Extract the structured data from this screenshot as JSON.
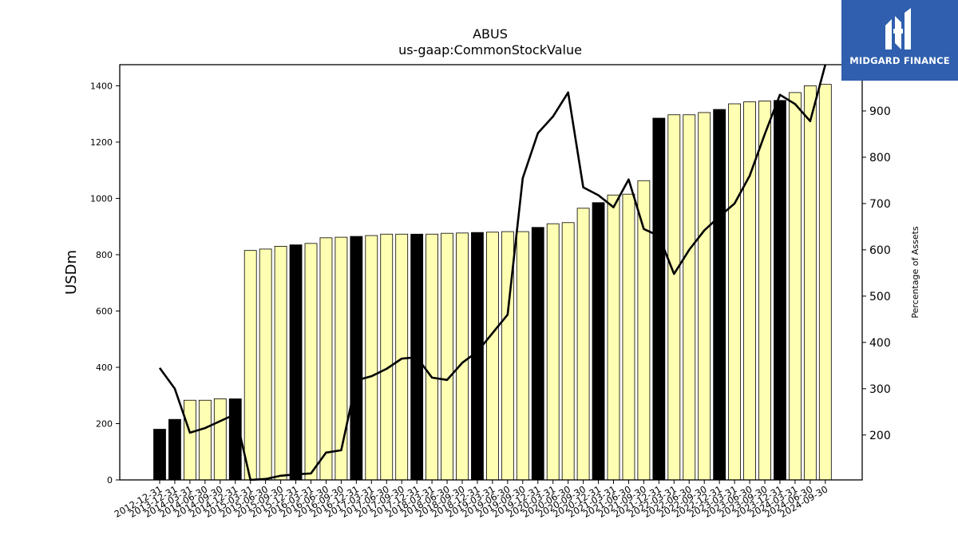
{
  "brand": {
    "name": "MIDGARD FINANCE",
    "icon": "midgard-m-logo-icon",
    "background": "#2f5fae"
  },
  "chart_data": {
    "type": "bar",
    "title": "ABUS",
    "subtitle": "us-gaap:CommonStockValue",
    "ylabel": "USDm",
    "y2label": "Percentage of Assets",
    "ylim": [
      0,
      1475
    ],
    "y2lim": [
      103,
      1000
    ],
    "yticks": [
      0,
      200,
      400,
      600,
      800,
      1000,
      1200,
      1400
    ],
    "y2ticks": [
      200,
      300,
      400,
      500,
      600,
      700,
      800,
      900
    ],
    "colors": {
      "annual": "#000000",
      "quarterly": "#ffffb3",
      "line": "#000000"
    },
    "categories": [
      "2012-12-31",
      "2013-12-31",
      "2014-03-31",
      "2014-06-30",
      "2014-09-30",
      "2014-12-31",
      "2015-03-31",
      "2015-06-30",
      "2015-09-30",
      "2015-12-31",
      "2016-03-31",
      "2016-06-30",
      "2016-09-30",
      "2016-12-31",
      "2017-03-31",
      "2017-06-30",
      "2017-09-30",
      "2017-12-31",
      "2018-03-31",
      "2018-06-30",
      "2018-09-30",
      "2018-12-31",
      "2019-03-31",
      "2019-06-30",
      "2019-09-30",
      "2019-12-31",
      "2020-03-31",
      "2020-06-30",
      "2020-09-30",
      "2020-12-31",
      "2021-03-31",
      "2021-06-30",
      "2021-09-30",
      "2021-12-31",
      "2022-03-31",
      "2022-06-30",
      "2022-09-30",
      "2022-12-31",
      "2023-03-31",
      "2023-06-30",
      "2023-09-30",
      "2023-12-31",
      "2024-03-31",
      "2024-06-30",
      "2024-09-30"
    ],
    "series": [
      {
        "type": "bar",
        "axis": "left",
        "values": [
          180,
          215,
          283,
          283,
          288,
          288,
          815,
          820,
          830,
          835,
          840,
          860,
          862,
          865,
          868,
          873,
          873,
          873,
          873,
          876,
          877,
          879,
          880,
          882,
          882,
          897,
          910,
          914,
          965,
          985,
          1012,
          1015,
          1063,
          1285,
          1297,
          1297,
          1305,
          1316,
          1336,
          1343,
          1346,
          1348,
          1376,
          1400,
          1405
        ],
        "kinds": [
          "annual",
          "annual",
          "quarterly",
          "quarterly",
          "quarterly",
          "annual",
          "quarterly",
          "quarterly",
          "quarterly",
          "annual",
          "quarterly",
          "quarterly",
          "quarterly",
          "annual",
          "quarterly",
          "quarterly",
          "quarterly",
          "annual",
          "quarterly",
          "quarterly",
          "quarterly",
          "annual",
          "quarterly",
          "quarterly",
          "quarterly",
          "annual",
          "quarterly",
          "quarterly",
          "quarterly",
          "annual",
          "quarterly",
          "quarterly",
          "quarterly",
          "annual",
          "quarterly",
          "quarterly",
          "quarterly",
          "annual",
          "quarterly",
          "quarterly",
          "quarterly",
          "annual",
          "quarterly",
          "quarterly",
          "quarterly"
        ]
      },
      {
        "type": "line",
        "axis": "right",
        "values": [
          345,
          300,
          205,
          215,
          230,
          245,
          103,
          105,
          112,
          115,
          117,
          162,
          167,
          318,
          327,
          343,
          365,
          368,
          324,
          319,
          356,
          380,
          420,
          460,
          755,
          852,
          888,
          940,
          735,
          718,
          692,
          752,
          645,
          630,
          548,
          600,
          642,
          672,
          700,
          760,
          850,
          935,
          915,
          878,
          1000
        ]
      }
    ]
  }
}
